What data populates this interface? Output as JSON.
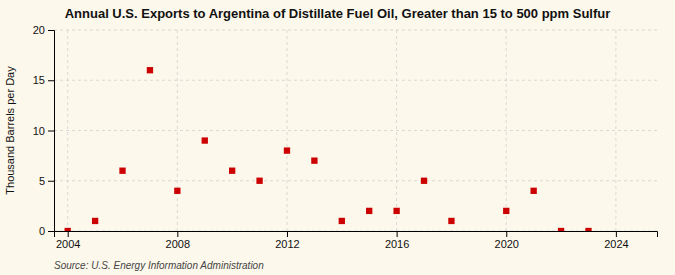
{
  "chart_data": {
    "type": "scatter",
    "title": "Annual U.S. Exports to Argentina of Distillate Fuel Oil, Greater than 15 to 500 ppm Sulfur",
    "ylabel": "Thousand Barrels per Day",
    "annotations": [
      "Source: U.S. Energy Information Administration"
    ],
    "x": [
      2004,
      2005,
      2006,
      2007,
      2008,
      2009,
      2010,
      2011,
      2012,
      2013,
      2014,
      2015,
      2016,
      2017,
      2018,
      2019,
      2020,
      2021,
      2022,
      2023,
      2024
    ],
    "values": [
      0,
      1,
      6,
      16,
      4,
      9,
      6,
      5,
      8,
      7,
      1,
      2,
      2,
      5,
      1,
      null,
      2,
      4,
      0,
      0,
      null
    ],
    "color": "#cc0000",
    "marker": "square",
    "xlim": [
      2003.5,
      2025.5
    ],
    "xticks": [
      2004,
      2008,
      2012,
      2016,
      2020,
      2024
    ],
    "ylim": [
      0,
      20
    ],
    "yticks": [
      0,
      5,
      10,
      15,
      20
    ],
    "grid": true
  }
}
